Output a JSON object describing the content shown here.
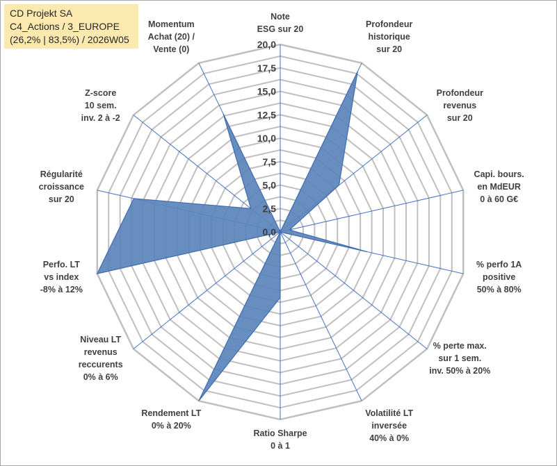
{
  "header": {
    "line1": "CD Projekt SA",
    "line2": "C4_Actions / 3_EUROPE",
    "line3": "(26,2% | 83,5%) / 2026W05"
  },
  "colors": {
    "fill": "#5b84bb",
    "stroke": "#3f6db2",
    "grid": "#bfbfbf",
    "spoke": "#4472c4",
    "title_bg": "#fbe9b0"
  },
  "chart_data": {
    "type": "radar",
    "title": "CD Projekt SA",
    "rmin": 0,
    "rmax": 20,
    "rticks": [
      "0,0",
      "2,5",
      "5,0",
      "7,5",
      "10,0",
      "12,5",
      "15,0",
      "17,5",
      "20,0"
    ],
    "axes": [
      {
        "label": [
          "Note",
          "ESG sur 20"
        ],
        "value": 0.0
      },
      {
        "label": [
          "Profondeur",
          "historique",
          "sur 20"
        ],
        "value": 19.0
      },
      {
        "label": [
          "Profondeur",
          "revenus",
          "sur 20"
        ],
        "value": 8.0
      },
      {
        "label": [
          "Capi. bours.",
          "en MdEUR",
          "0 à 60 G€"
        ],
        "value": 1.0
      },
      {
        "label": [
          "% perfo 1A",
          "positive",
          "50% à 80%"
        ],
        "value": 9.5
      },
      {
        "label": [
          "% perte max.",
          "sur 1 sem.",
          "inv. 50% à 20%"
        ],
        "value": 0.0
      },
      {
        "label": [
          "Volatilité LT",
          "inversée",
          "40% à 0%"
        ],
        "value": 0.0
      },
      {
        "label": [
          "Ratio Sharpe",
          "0 à 1"
        ],
        "value": 7.0
      },
      {
        "label": [
          "Rendement LT",
          "0% à 20%"
        ],
        "value": 20.0
      },
      {
        "label": [
          "Niveau LT",
          "revenus",
          "reccurents",
          "0% à 6%"
        ],
        "value": 0.0
      },
      {
        "label": [
          "Perfo. LT",
          "vs index",
          "-8% à 12%"
        ],
        "value": 20.0
      },
      {
        "label": [
          "Régularité",
          "croissance",
          "sur 20"
        ],
        "value": 16.0
      },
      {
        "label": [
          "Z-score",
          "10 sem.",
          "inv. 2 à -2"
        ],
        "value": 4.0
      },
      {
        "label": [
          "Momentum",
          "Achat (20) /",
          "Vente (0)"
        ],
        "value": 14.0
      }
    ]
  }
}
